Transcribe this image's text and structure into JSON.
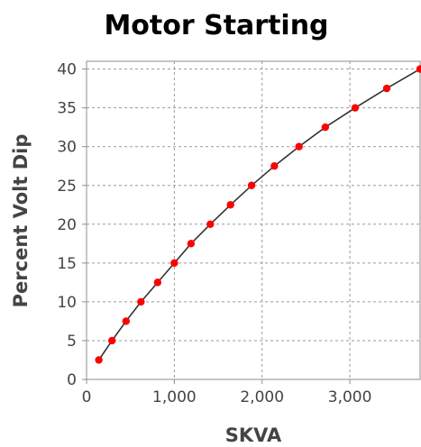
{
  "chart_data": {
    "type": "line",
    "title": "Motor Starting",
    "xlabel": "SKVA",
    "ylabel": "Percent Volt Dip",
    "xlim": [
      0,
      3800
    ],
    "ylim": [
      0,
      41
    ],
    "x_ticks": [
      0,
      1000,
      2000,
      3000
    ],
    "x_tick_labels": [
      "0",
      "1,000",
      "2,000",
      "3,000"
    ],
    "y_ticks": [
      0,
      5,
      10,
      15,
      20,
      25,
      30,
      35,
      40
    ],
    "y_tick_labels": [
      "0",
      "5",
      "10",
      "15",
      "20",
      "25",
      "30",
      "35",
      "40"
    ],
    "grid": true,
    "series": [
      {
        "x": [
          140,
          290,
          450,
          620,
          810,
          1000,
          1190,
          1410,
          1640,
          1880,
          2140,
          2420,
          2720,
          3060,
          3420,
          3800
        ],
        "y": [
          2.5,
          5,
          7.5,
          10,
          12.5,
          15,
          17.5,
          20,
          22.5,
          25,
          27.5,
          30,
          32.5,
          35,
          37.5,
          40
        ],
        "line_color": "#333333",
        "marker_color": "#ff0000"
      }
    ]
  }
}
